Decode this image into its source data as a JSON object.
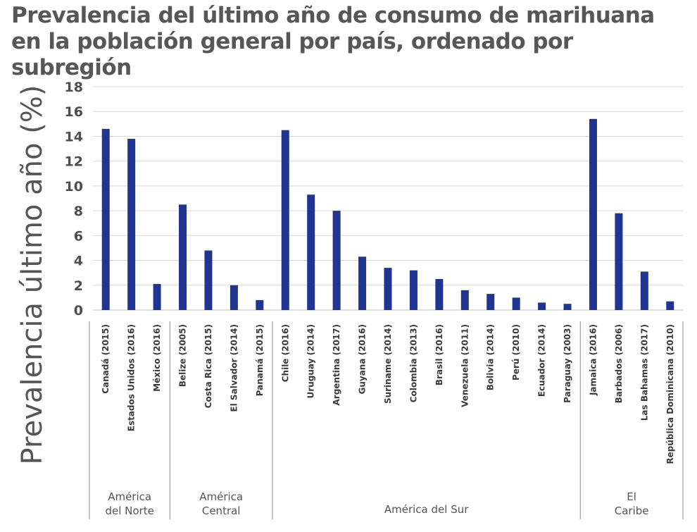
{
  "chart_data": {
    "type": "bar",
    "title": "Prevalencia del último año de consumo de marihuana en la población general por país, ordenado por subregión",
    "ylabel": "Prevalencia último año (%)",
    "xlabel": "",
    "ylim": [
      0,
      18
    ],
    "yticks": [
      "0",
      "2",
      "4",
      "6",
      "8",
      "10",
      "12",
      "14",
      "16",
      "18"
    ],
    "grid": true,
    "bar_color": "#1f3590",
    "categories": [
      "Canadá (2015)",
      "Estados Unidos (2016)",
      "México (2016)",
      "Belize (2005)",
      "Costa Rica (2015)",
      "El Salvador (2014)",
      "Panamá (2015)",
      "Chile (2016)",
      "Uruguay (2014)",
      "Argentina (2017)",
      "Guyana (2016)",
      "Suriname (2014)",
      "Colombia (2013)",
      "Brasil (2016)",
      "Venezuela (2011)",
      "Bolivia (2014)",
      "Perú (2010)",
      "Ecuador (2014)",
      "Paraguay (2003)",
      "Jamaica (2016)",
      "Barbados (2006)",
      "Las Bahamas (2017)",
      "República Dominicana (2010)"
    ],
    "values": [
      14.6,
      13.8,
      2.1,
      8.5,
      4.8,
      2.0,
      0.8,
      14.5,
      9.3,
      8.0,
      4.3,
      3.4,
      3.2,
      2.5,
      1.6,
      1.3,
      1.0,
      0.6,
      0.5,
      15.4,
      7.8,
      3.1,
      0.7
    ],
    "groups": [
      {
        "name": "América del Norte",
        "count": 3
      },
      {
        "name": "América Central",
        "count": 4
      },
      {
        "name": "América del Sur",
        "count": 12
      },
      {
        "name": "El Caribe",
        "count": 4
      }
    ]
  }
}
